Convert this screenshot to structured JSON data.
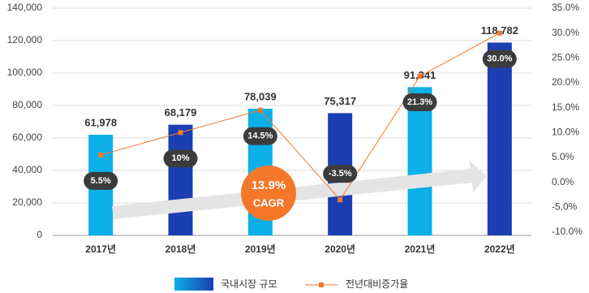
{
  "chart_data": {
    "type": "bar",
    "categories": [
      "2017년",
      "2018년",
      "2019년",
      "2020년",
      "2021년",
      "2022년"
    ],
    "ylim": [
      0,
      140000
    ],
    "yticks": [
      0,
      {
        "value": 20000,
        "label": "20,000"
      },
      {
        "value": 40000,
        "label": "40,000"
      },
      {
        "value": 60000,
        "label": "60,000"
      },
      {
        "value": 80000,
        "label": "80,000"
      },
      {
        "value": 100000,
        "label": "100,000"
      },
      {
        "value": 120000,
        "label": "120,000"
      },
      {
        "value": 140000,
        "label": "140,000"
      }
    ],
    "y2lim": [
      -10,
      35
    ],
    "y2ticks": [
      {
        "value": -10,
        "label": "-10.0%"
      },
      {
        "value": -5,
        "label": "-5.0%"
      },
      {
        "value": 0,
        "label": "0.0%"
      },
      {
        "value": 5,
        "label": "5.0%"
      },
      {
        "value": 10,
        "label": "10.0%"
      },
      {
        "value": 15,
        "label": "15.0%"
      },
      {
        "value": 20,
        "label": "20.0%"
      },
      {
        "value": 25,
        "label": "25.0%"
      },
      {
        "value": 30,
        "label": "30.0%"
      },
      {
        "value": 35,
        "label": "35.0%"
      }
    ],
    "grid": true,
    "series": [
      {
        "name": "국내시장 규모",
        "type": "bar",
        "colors": [
          "#0bb0e8",
          "#1b3fb2",
          "#0bb0e8",
          "#1b3fb2",
          "#0bb0e8",
          "#1b3fb2"
        ],
        "values": [
          61978,
          68179,
          78039,
          75317,
          91341,
          118782
        ],
        "value_labels": [
          "61,978",
          "68,179",
          "78,039",
          "75,317",
          "91,341",
          "118,782"
        ]
      },
      {
        "name": "전년대비증가율",
        "type": "line",
        "axis": "y2",
        "color": "#f07a2b",
        "values": [
          5.5,
          10,
          14.5,
          -3.5,
          21.3,
          30.0
        ],
        "value_labels": [
          "5.5%",
          "10%",
          "14.5%",
          "-3.5%",
          "21.3%",
          "30.0%"
        ]
      }
    ],
    "annotations": [
      "13.9%",
      "CAGR"
    ]
  }
}
